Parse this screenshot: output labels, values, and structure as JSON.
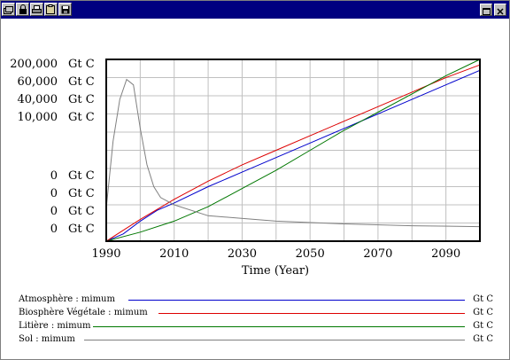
{
  "window": {
    "title": ""
  },
  "toolbar": {
    "icons": [
      "restore-window-icon",
      "lock-icon",
      "print-icon",
      "copy-icon",
      "save-icon"
    ]
  },
  "controls": {
    "icons": [
      "maximize-icon",
      "close-icon"
    ]
  },
  "colors": {
    "titlebar": "#000080",
    "atmosphere": "#0000cc",
    "biosphere": "#dd0000",
    "litter": "#007700",
    "soil": "#808080"
  },
  "chart_data": {
    "type": "line",
    "xlabel": "Time (Year)",
    "xlim": [
      1990,
      2100
    ],
    "x_ticks": [
      "1990",
      "2010",
      "2030",
      "2050",
      "2070",
      "2090"
    ],
    "y_axis_labels": [
      {
        "value": "200,000",
        "unit": "Gt C"
      },
      {
        "value": "60,000",
        "unit": "Gt C"
      },
      {
        "value": "40,000",
        "unit": "Gt C"
      },
      {
        "value": "10,000",
        "unit": "Gt C"
      },
      {
        "value": "0",
        "unit": "Gt C"
      },
      {
        "value": "0",
        "unit": "Gt C"
      },
      {
        "value": "0",
        "unit": "Gt C"
      },
      {
        "value": "0",
        "unit": "Gt C"
      }
    ],
    "grid": true,
    "legend_placement": "bottom",
    "series": [
      {
        "name": "Atmosphère : mimum",
        "unit": "Gt C",
        "color": "#0000cc",
        "x": [
          1990,
          1995,
          2000,
          2005,
          2010,
          2020,
          2030,
          2040,
          2050,
          2060,
          2070,
          2080,
          2090,
          2100
        ],
        "y": [
          0.0,
          0.04,
          0.11,
          0.17,
          0.21,
          0.3,
          0.38,
          0.46,
          0.54,
          0.62,
          0.7,
          0.78,
          0.86,
          0.94
        ]
      },
      {
        "name": "Biosphère Végétale : mimum",
        "unit": "Gt C",
        "color": "#dd0000",
        "x": [
          1990,
          2000,
          2010,
          2020,
          2030,
          2040,
          2050,
          2060,
          2070,
          2080,
          2090,
          2100
        ],
        "y": [
          0.0,
          0.12,
          0.23,
          0.33,
          0.42,
          0.5,
          0.58,
          0.66,
          0.74,
          0.82,
          0.9,
          0.97
        ]
      },
      {
        "name": "Litière : mimum",
        "unit": "Gt C",
        "color": "#007700",
        "x": [
          1990,
          2000,
          2010,
          2020,
          2030,
          2040,
          2050,
          2060,
          2070,
          2080,
          2090,
          2100
        ],
        "y": [
          0.0,
          0.05,
          0.11,
          0.19,
          0.29,
          0.39,
          0.5,
          0.61,
          0.71,
          0.81,
          0.91,
          1.0
        ]
      },
      {
        "name": "Sol : mimum",
        "unit": "Gt C",
        "color": "#808080",
        "x": [
          1990,
          1992,
          1994,
          1996,
          1998,
          2000,
          2002,
          2004,
          2006,
          2010,
          2020,
          2040,
          2060,
          2080,
          2100
        ],
        "y": [
          0.18,
          0.55,
          0.78,
          0.89,
          0.86,
          0.62,
          0.42,
          0.3,
          0.24,
          0.2,
          0.14,
          0.11,
          0.095,
          0.085,
          0.08
        ]
      }
    ]
  },
  "legend": {
    "items": [
      {
        "label": "Atmosphère : mimum",
        "unit": "Gt C"
      },
      {
        "label": "Biosphère Végétale : mimum",
        "unit": "Gt C"
      },
      {
        "label": "Litière : mimum",
        "unit": "Gt C"
      },
      {
        "label": "Sol : mimum",
        "unit": "Gt C"
      }
    ]
  }
}
